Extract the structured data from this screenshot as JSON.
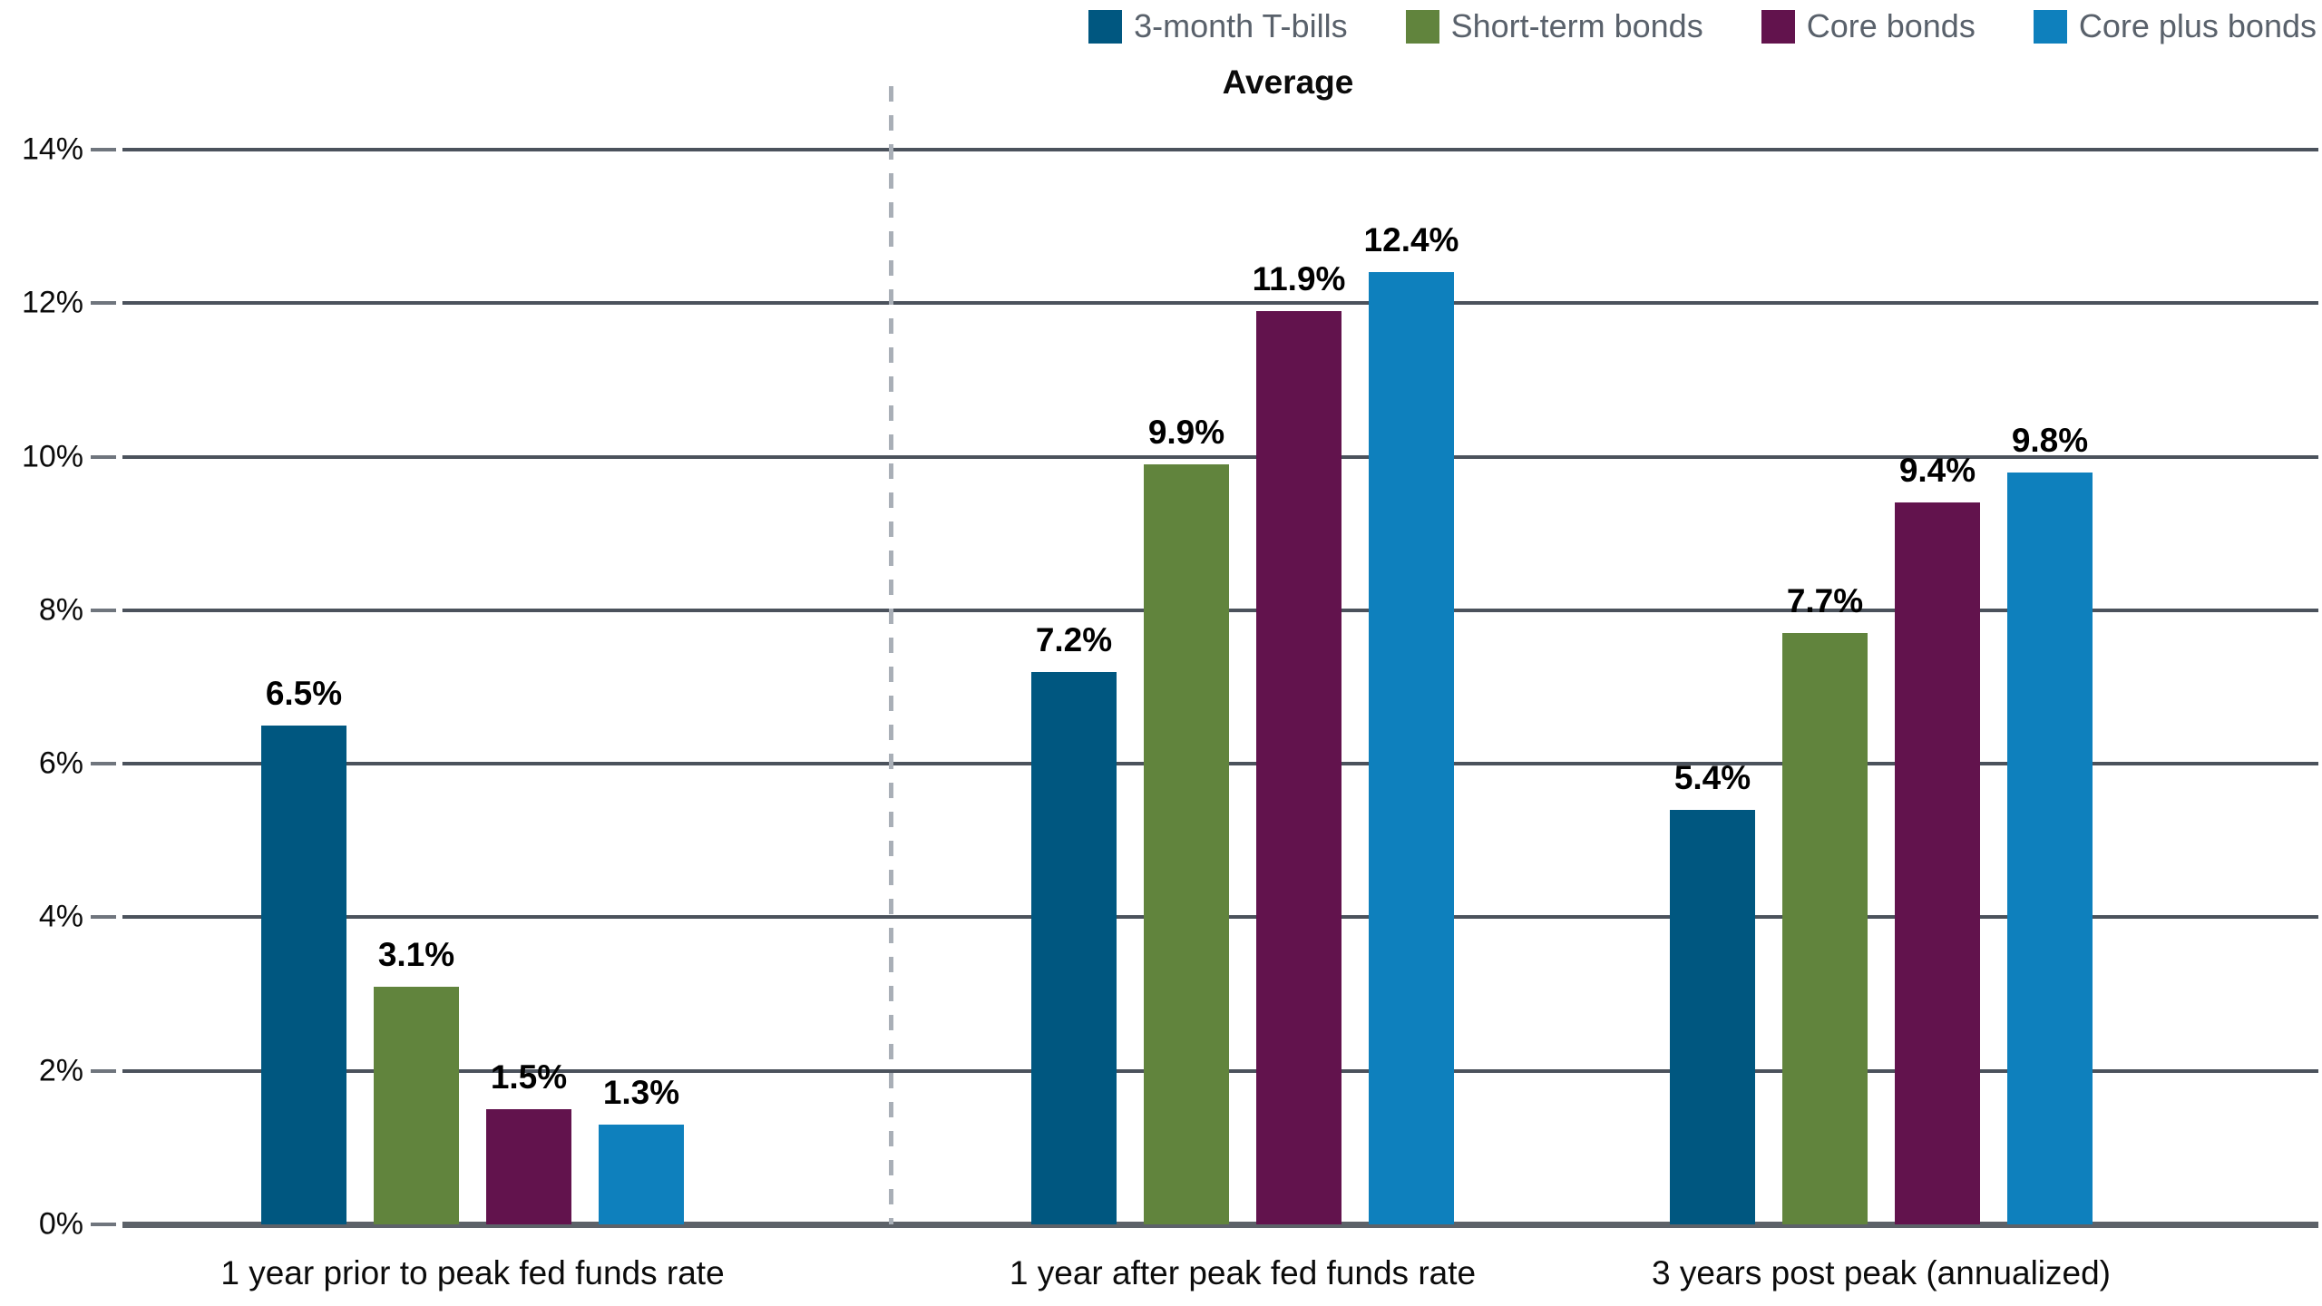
{
  "chart_data": {
    "type": "bar",
    "title": "Average",
    "legend_position": "top-right",
    "grid": true,
    "categories": [
      "1 year prior to peak fed funds rate",
      "1 year after peak fed funds rate",
      "3 years post peak (annualized)"
    ],
    "series": [
      {
        "name": "3-month T-bills",
        "color": "#005780",
        "values": [
          6.5,
          7.2,
          5.4
        ],
        "labels": [
          "6.5%",
          "7.2%",
          "5.4%"
        ]
      },
      {
        "name": "Short-term bonds",
        "color": "#61843d",
        "values": [
          3.1,
          9.9,
          7.7
        ],
        "labels": [
          "3.1%",
          "9.9%",
          "7.7%"
        ]
      },
      {
        "name": "Core bonds",
        "color": "#62134d",
        "values": [
          1.5,
          11.9,
          9.4
        ],
        "labels": [
          "1.5%",
          "11.9%",
          "9.4%"
        ]
      },
      {
        "name": "Core plus bonds",
        "color": "#0e80bd",
        "values": [
          1.3,
          12.4,
          9.8
        ],
        "labels": [
          "1.3%",
          "12.4%",
          "9.8%"
        ]
      }
    ],
    "y_axis": {
      "min": 0,
      "max": 14,
      "step": 2,
      "tick_labels": [
        "0%",
        "2%",
        "4%",
        "6%",
        "8%",
        "10%",
        "12%",
        "14%"
      ]
    },
    "divider_after_category_index": 0,
    "style": {
      "gridline_color": "#4b525c",
      "baseline_color": "#5d6269",
      "divider_color": "#a9afb7",
      "legend_text_color": "#59616b"
    }
  }
}
